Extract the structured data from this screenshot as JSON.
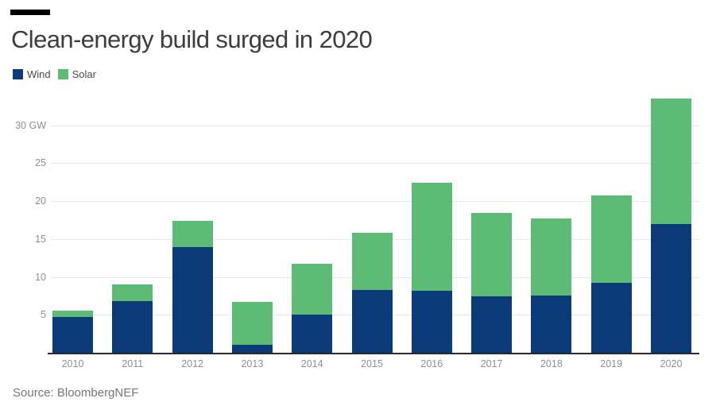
{
  "title": "Clean-energy build surged in 2020",
  "source": "Source: BloombergNEF",
  "legend": {
    "items": [
      {
        "label": "Wind",
        "color": "#0a3a78"
      },
      {
        "label": "Solar",
        "color": "#5cbb74"
      }
    ]
  },
  "colors": {
    "wind": "#0a3a78",
    "solar": "#5cbb74",
    "gridline": "#e8e8e8",
    "axis_line": "#2b2b2b",
    "tick_label": "#8f8f8f",
    "title_text": "#3d3d3d",
    "accent_bar": "#000000"
  },
  "chart_data": {
    "type": "bar",
    "stacked": true,
    "title": "Clean-energy build surged in 2020",
    "unit": "GW",
    "categories": [
      "2010",
      "2011",
      "2012",
      "2013",
      "2014",
      "2015",
      "2016",
      "2017",
      "2018",
      "2019",
      "2020"
    ],
    "series": [
      {
        "name": "Wind",
        "color": "#0a3a78",
        "values": [
          4.7,
          6.8,
          13.9,
          1.0,
          5.0,
          8.3,
          8.2,
          7.4,
          7.5,
          9.2,
          17.0
        ]
      },
      {
        "name": "Solar",
        "color": "#5cbb74",
        "values": [
          0.9,
          2.2,
          3.5,
          5.7,
          6.7,
          7.5,
          14.2,
          11.0,
          10.2,
          11.5,
          16.5
        ]
      }
    ],
    "totals": [
      5.6,
      9.0,
      17.4,
      6.7,
      11.7,
      15.8,
      22.4,
      18.4,
      17.7,
      20.7,
      33.5
    ],
    "xlabel": "",
    "ylabel": "GW",
    "ylim": [
      0,
      35
    ],
    "y_ticks": [
      {
        "value": 5,
        "label": "5"
      },
      {
        "value": 10,
        "label": "10"
      },
      {
        "value": 15,
        "label": "15"
      },
      {
        "value": 20,
        "label": "20"
      },
      {
        "value": 25,
        "label": "25"
      },
      {
        "value": 30,
        "label": "30 GW"
      }
    ],
    "grid": "horizontal",
    "legend_position": "top-left"
  }
}
